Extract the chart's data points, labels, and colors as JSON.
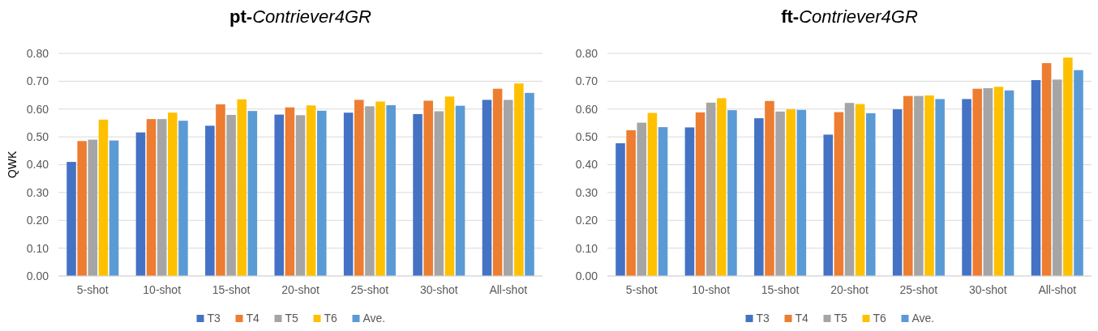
{
  "chart_data": [
    {
      "type": "bar",
      "title": "pt-Contriever4GR",
      "ylabel": "QWK",
      "categories": [
        "5-shot",
        "10-shot",
        "15-shot",
        "20-shot",
        "25-shot",
        "30-shot",
        "All-shot"
      ],
      "series": [
        {
          "name": "T3",
          "color": "#4472c4",
          "values": [
            0.41,
            0.516,
            0.54,
            0.58,
            0.587,
            0.582,
            0.633
          ]
        },
        {
          "name": "T4",
          "color": "#ed7d31",
          "values": [
            0.485,
            0.564,
            0.617,
            0.606,
            0.633,
            0.63,
            0.673
          ]
        },
        {
          "name": "T5",
          "color": "#a5a5a5",
          "values": [
            0.49,
            0.564,
            0.579,
            0.578,
            0.61,
            0.592,
            0.633
          ]
        },
        {
          "name": "T6",
          "color": "#ffc000",
          "values": [
            0.562,
            0.587,
            0.635,
            0.613,
            0.627,
            0.645,
            0.692
          ]
        },
        {
          "name": "Ave.",
          "color": "#5b9bd5",
          "values": [
            0.487,
            0.558,
            0.593,
            0.594,
            0.614,
            0.612,
            0.658
          ]
        }
      ],
      "ylim": [
        0,
        0.8
      ],
      "yticks": [
        {
          "value": 0,
          "label": "0.00"
        },
        {
          "value": 0.1,
          "label": "0.10"
        },
        {
          "value": 0.2,
          "label": "0.20"
        },
        {
          "value": 0.3,
          "label": "0.30"
        },
        {
          "value": 0.4,
          "label": "0.40"
        },
        {
          "value": 0.5,
          "label": "0.50"
        },
        {
          "value": 0.6,
          "label": "0.60"
        },
        {
          "value": 0.7,
          "label": "0.70"
        },
        {
          "value": 0.8,
          "label": "0.80"
        }
      ],
      "grid": "y",
      "legend": "bottom"
    },
    {
      "type": "bar",
      "title": "ft-Contriever4GR",
      "categories": [
        "5-shot",
        "10-shot",
        "15-shot",
        "20-shot",
        "25-shot",
        "30-shot",
        "All-shot"
      ],
      "series": [
        {
          "name": "T3",
          "color": "#4472c4",
          "values": [
            0.477,
            0.534,
            0.567,
            0.508,
            0.599,
            0.636,
            0.704
          ]
        },
        {
          "name": "T4",
          "color": "#ed7d31",
          "values": [
            0.524,
            0.588,
            0.629,
            0.589,
            0.647,
            0.673,
            0.765
          ]
        },
        {
          "name": "T5",
          "color": "#a5a5a5",
          "values": [
            0.551,
            0.623,
            0.591,
            0.622,
            0.647,
            0.675,
            0.706
          ]
        },
        {
          "name": "T6",
          "color": "#ffc000",
          "values": [
            0.586,
            0.639,
            0.599,
            0.618,
            0.649,
            0.68,
            0.785
          ]
        },
        {
          "name": "Ave.",
          "color": "#5b9bd5",
          "values": [
            0.535,
            0.596,
            0.597,
            0.585,
            0.636,
            0.667,
            0.74
          ]
        }
      ],
      "ylim": [
        0,
        0.8
      ],
      "yticks": [
        {
          "value": 0,
          "label": "0.00"
        },
        {
          "value": 0.1,
          "label": "0.10"
        },
        {
          "value": 0.2,
          "label": "0.20"
        },
        {
          "value": 0.3,
          "label": "0.30"
        },
        {
          "value": 0.4,
          "label": "0.40"
        },
        {
          "value": 0.5,
          "label": "0.50"
        },
        {
          "value": 0.6,
          "label": "0.60"
        },
        {
          "value": 0.7,
          "label": "0.70"
        },
        {
          "value": 0.8,
          "label": "0.80"
        }
      ],
      "grid": "y",
      "legend": "bottom"
    }
  ]
}
